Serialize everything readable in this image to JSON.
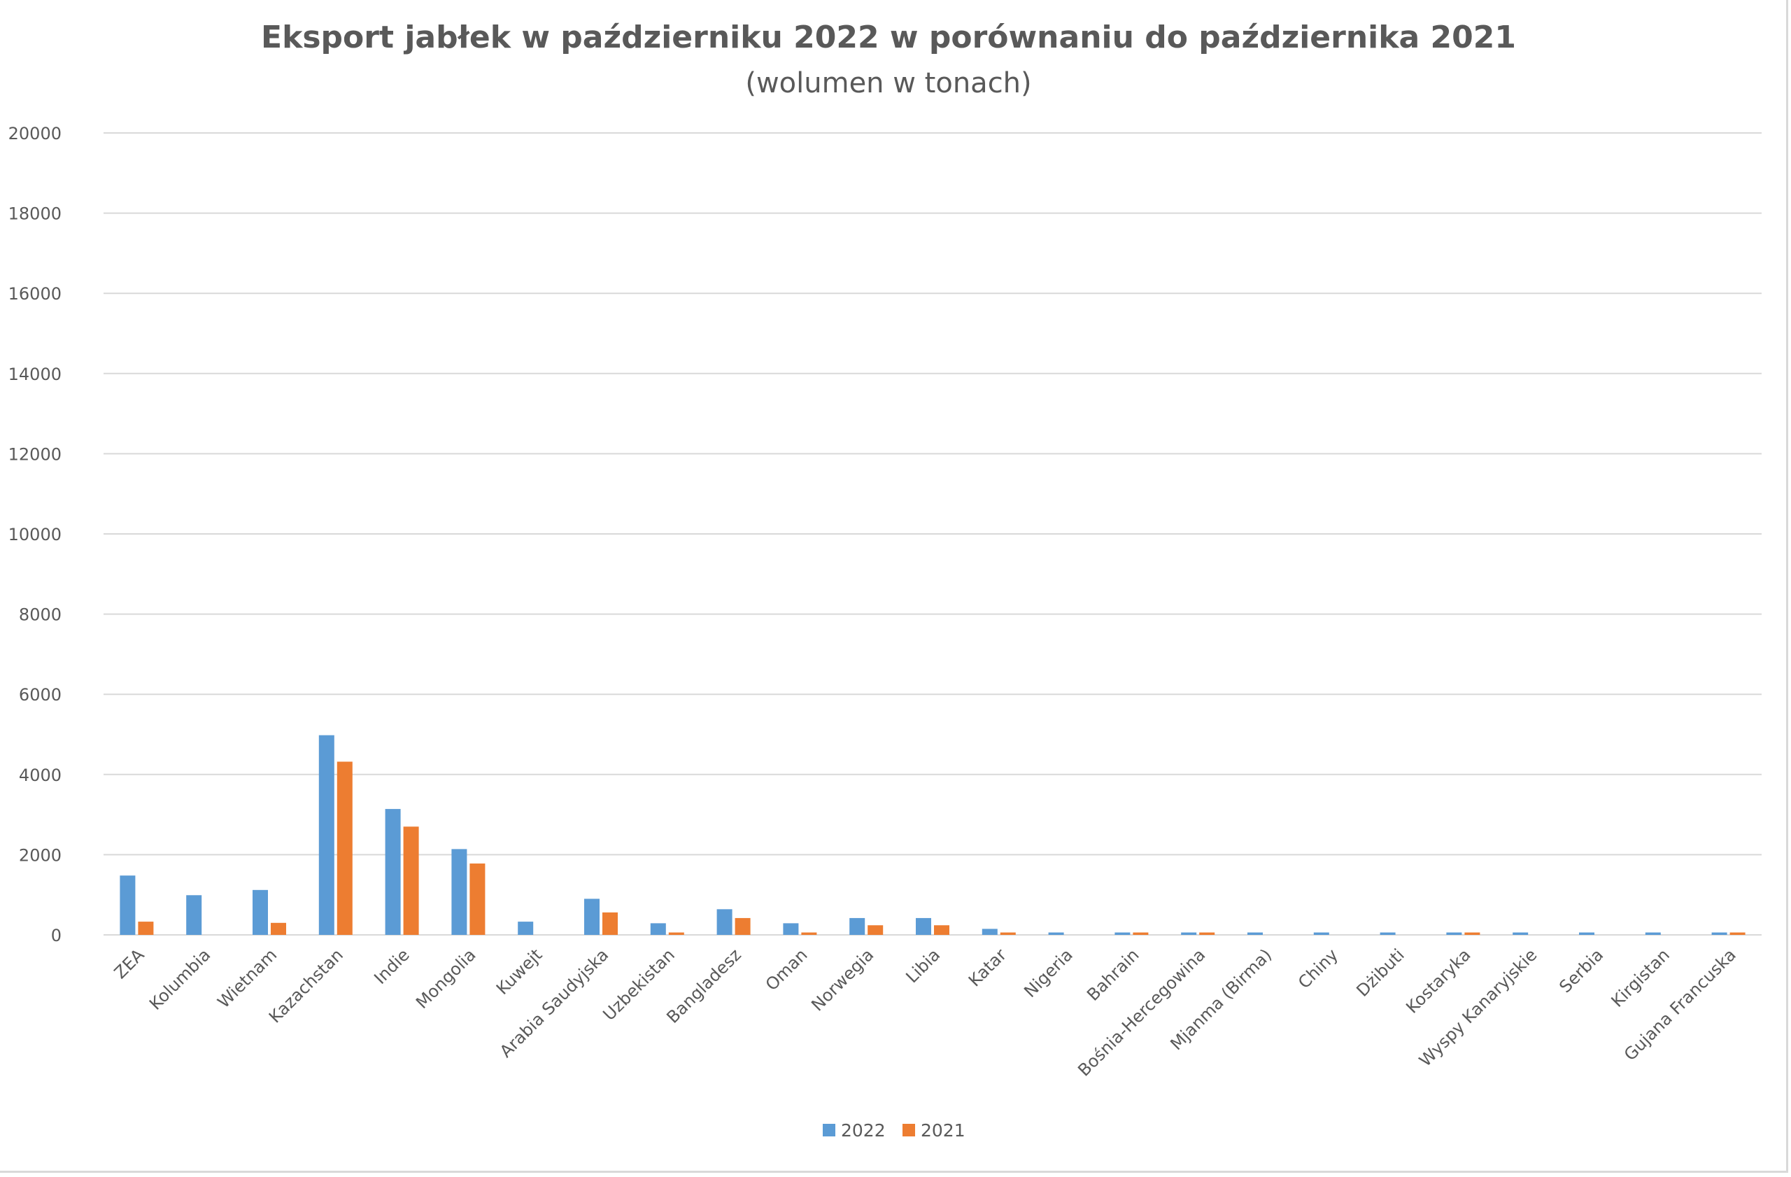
{
  "chart_data": {
    "type": "bar",
    "title": "Eksport jabłek w październiku 2022 w porównaniu do października 2021",
    "subtitle": "(wolumen w tonach)",
    "xlabel": "",
    "ylabel": "",
    "ylim": [
      0,
      20000
    ],
    "yticks": [
      0,
      2000,
      4000,
      6000,
      8000,
      10000,
      12000,
      14000,
      16000,
      18000,
      20000
    ],
    "grid": true,
    "legend_position": "bottom",
    "categories": [
      "ZEA",
      "Kolumbia",
      "Wietnam",
      "Kazachstan",
      "Indie",
      "Mongolia",
      "Kuwejt",
      "Arabia Saudyjska",
      "Uzbekistan",
      "Bangladesz",
      "Oman",
      "Norwegia",
      "Libia",
      "Katar",
      "Nigeria",
      "Bahrain",
      "Bośnia-Hercegowina",
      "Mjanma (Birma)",
      "Chiny",
      "Dżibuti",
      "Kostaryka",
      "Wyspy Kanaryjskie",
      "Serbia",
      "Kirgistan",
      "Gujana Francuska"
    ],
    "series": [
      {
        "name": "2022",
        "color": "#5b9bd5",
        "values": [
          1480,
          990,
          1120,
          4980,
          3140,
          2140,
          330,
          900,
          290,
          640,
          290,
          420,
          420,
          150,
          60,
          60,
          60,
          60,
          60,
          60,
          60,
          60,
          60,
          60,
          60
        ]
      },
      {
        "name": "2021",
        "color": "#ed7d31",
        "values": [
          330,
          0,
          300,
          4320,
          2700,
          1780,
          0,
          560,
          60,
          420,
          60,
          240,
          240,
          60,
          0,
          60,
          60,
          0,
          0,
          0,
          60,
          0,
          0,
          0,
          60
        ]
      }
    ]
  }
}
